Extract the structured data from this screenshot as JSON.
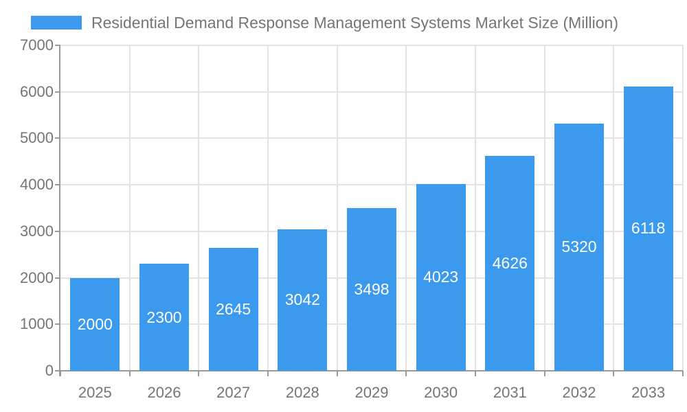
{
  "chart_data": {
    "type": "bar",
    "title": "Residential Demand Response Management Systems Market Size (Million)",
    "categories": [
      "2025",
      "2026",
      "2027",
      "2028",
      "2029",
      "2030",
      "2031",
      "2032",
      "2033"
    ],
    "values": [
      2000,
      2300,
      2645,
      3042,
      3498,
      4023,
      4626,
      5320,
      6118
    ],
    "series_name": "Residential Demand Response Management Systems Market Size (Million)",
    "xlabel": "",
    "ylabel": "",
    "ylim": [
      0,
      7000
    ],
    "yticks": [
      0,
      1000,
      2000,
      3000,
      4000,
      5000,
      6000,
      7000
    ],
    "grid": true,
    "legend_position": "top-left",
    "bar_value_labels_shown": true
  },
  "colors": {
    "bar": "#3b99ee",
    "bar_label": "#ffffff",
    "axis": "#9a9a9a",
    "gridline": "#e3e3e3",
    "text": "#757575",
    "background": "#ffffff"
  }
}
